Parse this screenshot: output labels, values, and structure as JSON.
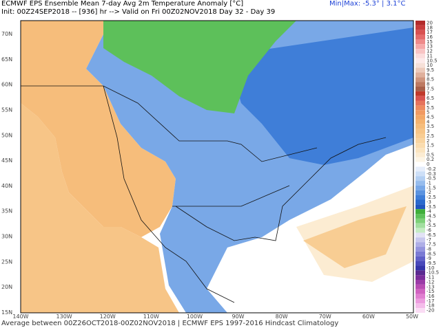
{
  "header": {
    "title": "ECMWF EPS Ensemble Mean 7-day Avg 2m Temperature Anomaly [°C]",
    "init": "Init: 00Z24SEP2018 -- [936] hr --> Valid on Fri 00Z02NOV2018  Day 32 - Day 39",
    "minmax": "Min|Max: -5.3° | 3.1°C"
  },
  "map": {
    "latitude_labels": [
      "70N",
      "65N",
      "60N",
      "55N",
      "50N",
      "45N",
      "40N",
      "35N",
      "30N",
      "25N",
      "20N",
      "15N"
    ],
    "longitude_labels": [
      "140W",
      "130W",
      "120W",
      "110W",
      "100W",
      "90W",
      "80W",
      "70W",
      "60W",
      "50W"
    ]
  },
  "legend": {
    "items": [
      {
        "label": "20",
        "color": "#b22a2a"
      },
      {
        "label": "18",
        "color": "#c83c3c"
      },
      {
        "label": "17",
        "color": "#d85050"
      },
      {
        "label": "16",
        "color": "#e46a6a"
      },
      {
        "label": "15",
        "color": "#ee8a8a"
      },
      {
        "label": "13",
        "color": "#f5a8a8"
      },
      {
        "label": "12",
        "color": "#f8c4c4"
      },
      {
        "label": "11",
        "color": "#fbdcdc"
      },
      {
        "label": "10.5",
        "color": "#fdeaea"
      },
      {
        "label": "10",
        "color": "#f6e0d8"
      },
      {
        "label": "9.5",
        "color": "#eccabb"
      },
      {
        "label": "9",
        "color": "#dfb09c"
      },
      {
        "label": "8.5",
        "color": "#cf957e"
      },
      {
        "label": "8",
        "color": "#bd7a62"
      },
      {
        "label": "7.5",
        "color": "#a8604a"
      },
      {
        "label": "7",
        "color": "#c0392b"
      },
      {
        "label": "6.5",
        "color": "#d9534f"
      },
      {
        "label": "6",
        "color": "#e6735c"
      },
      {
        "label": "5.5",
        "color": "#ee8a5f"
      },
      {
        "label": "5",
        "color": "#f19a62"
      },
      {
        "label": "4.5",
        "color": "#f3a867"
      },
      {
        "label": "4",
        "color": "#f5b36f"
      },
      {
        "label": "3.5",
        "color": "#f6bd7b"
      },
      {
        "label": "3",
        "color": "#f7c587"
      },
      {
        "label": "2.5",
        "color": "#f8cd93"
      },
      {
        "label": "2",
        "color": "#f9d4a0"
      },
      {
        "label": "1.5",
        "color": "#fadcaf"
      },
      {
        "label": "1",
        "color": "#fbe4bf"
      },
      {
        "label": "0.5",
        "color": "#fcecd2"
      },
      {
        "label": "0.2",
        "color": "#fdf5e6"
      },
      {
        "label": "0",
        "color": "#ffffff"
      },
      {
        "label": "-0.2",
        "color": "#e6eefb"
      },
      {
        "label": "-0.3",
        "color": "#cddff7"
      },
      {
        "label": "-0.5",
        "color": "#b3cff2"
      },
      {
        "label": "-1",
        "color": "#96bced"
      },
      {
        "label": "-1.5",
        "color": "#79a8e7"
      },
      {
        "label": "-2",
        "color": "#5b93e0"
      },
      {
        "label": "-2.5",
        "color": "#3f7ed8"
      },
      {
        "label": "-3",
        "color": "#2a69cd"
      },
      {
        "label": "-3.5",
        "color": "#1f55bf"
      },
      {
        "label": "-4",
        "color": "#3fae3a"
      },
      {
        "label": "-4.5",
        "color": "#5dc05a"
      },
      {
        "label": "-5",
        "color": "#7dd078"
      },
      {
        "label": "-5.5",
        "color": "#a2dea0"
      },
      {
        "label": "-6",
        "color": "#c5ecc3"
      },
      {
        "label": "-6.5",
        "color": "#e2e2f5"
      },
      {
        "label": "-7",
        "color": "#c8c8ee"
      },
      {
        "label": "-7.5",
        "color": "#aeaee6"
      },
      {
        "label": "-8",
        "color": "#9494de"
      },
      {
        "label": "-8.5",
        "color": "#7a7ad4"
      },
      {
        "label": "-9",
        "color": "#6060c8"
      },
      {
        "label": "-9.5",
        "color": "#4848ba"
      },
      {
        "label": "-10",
        "color": "#3434a8"
      },
      {
        "label": "-10.5",
        "color": "#5a2a90"
      },
      {
        "label": "-11",
        "color": "#7a2e9a"
      },
      {
        "label": "-12",
        "color": "#9a3aa6"
      },
      {
        "label": "-13",
        "color": "#b84cb2"
      },
      {
        "label": "-15",
        "color": "#d062c0"
      },
      {
        "label": "-16",
        "color": "#e07ed0"
      },
      {
        "label": "-17",
        "color": "#ec9cde"
      },
      {
        "label": "-18",
        "color": "#f4bcea"
      },
      {
        "label": "-20",
        "color": "#fadcf4"
      }
    ]
  },
  "footer": "Average between 00Z26OCT2018-00Z02NOV2018 | ECMWF EPS 1997-2016 Hindcast Climatology"
}
